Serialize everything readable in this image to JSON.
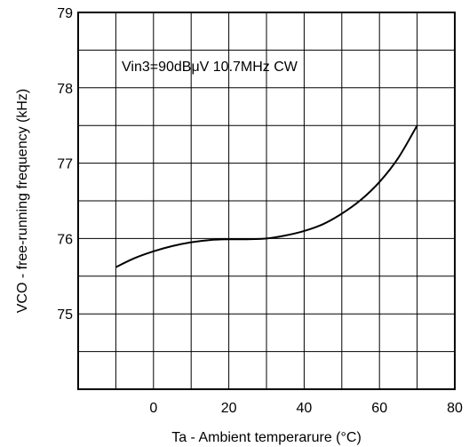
{
  "chart_data": {
    "type": "line",
    "title": "",
    "annotation": "Vin3=90dBμV  10.7MHz CW",
    "xlabel": "Ta - Ambient temperarure (°C)",
    "ylabel": "VCO - free-running frequency (kHz)",
    "xlim": [
      -20,
      80
    ],
    "ylim": [
      74,
      79
    ],
    "x_ticks": [
      0,
      20,
      40,
      60,
      80
    ],
    "x_tick_labels": [
      "0",
      "20",
      "40",
      "60",
      "80"
    ],
    "y_ticks": [
      75,
      76,
      77,
      78,
      79
    ],
    "y_tick_labels": [
      "75",
      "76",
      "77",
      "78",
      "79"
    ],
    "x_gridlines": [
      -10,
      0,
      10,
      20,
      30,
      40,
      50,
      60,
      70
    ],
    "y_gridlines": [
      74.5,
      75,
      75.5,
      76,
      76.5,
      77,
      77.5,
      78,
      78.5
    ],
    "grid": true,
    "series": [
      {
        "x": [
          -10,
          -5,
          0,
          5,
          10,
          15,
          20,
          25,
          30,
          35,
          40,
          45,
          50,
          55,
          60,
          65,
          70
        ],
        "y": [
          75.62,
          75.74,
          75.83,
          75.9,
          75.95,
          75.98,
          75.99,
          75.99,
          76.0,
          76.04,
          76.1,
          76.19,
          76.33,
          76.51,
          76.75,
          77.07,
          77.5
        ]
      }
    ],
    "colors": {
      "line": "#000000",
      "grid": "#000000",
      "background": "#ffffff"
    }
  }
}
